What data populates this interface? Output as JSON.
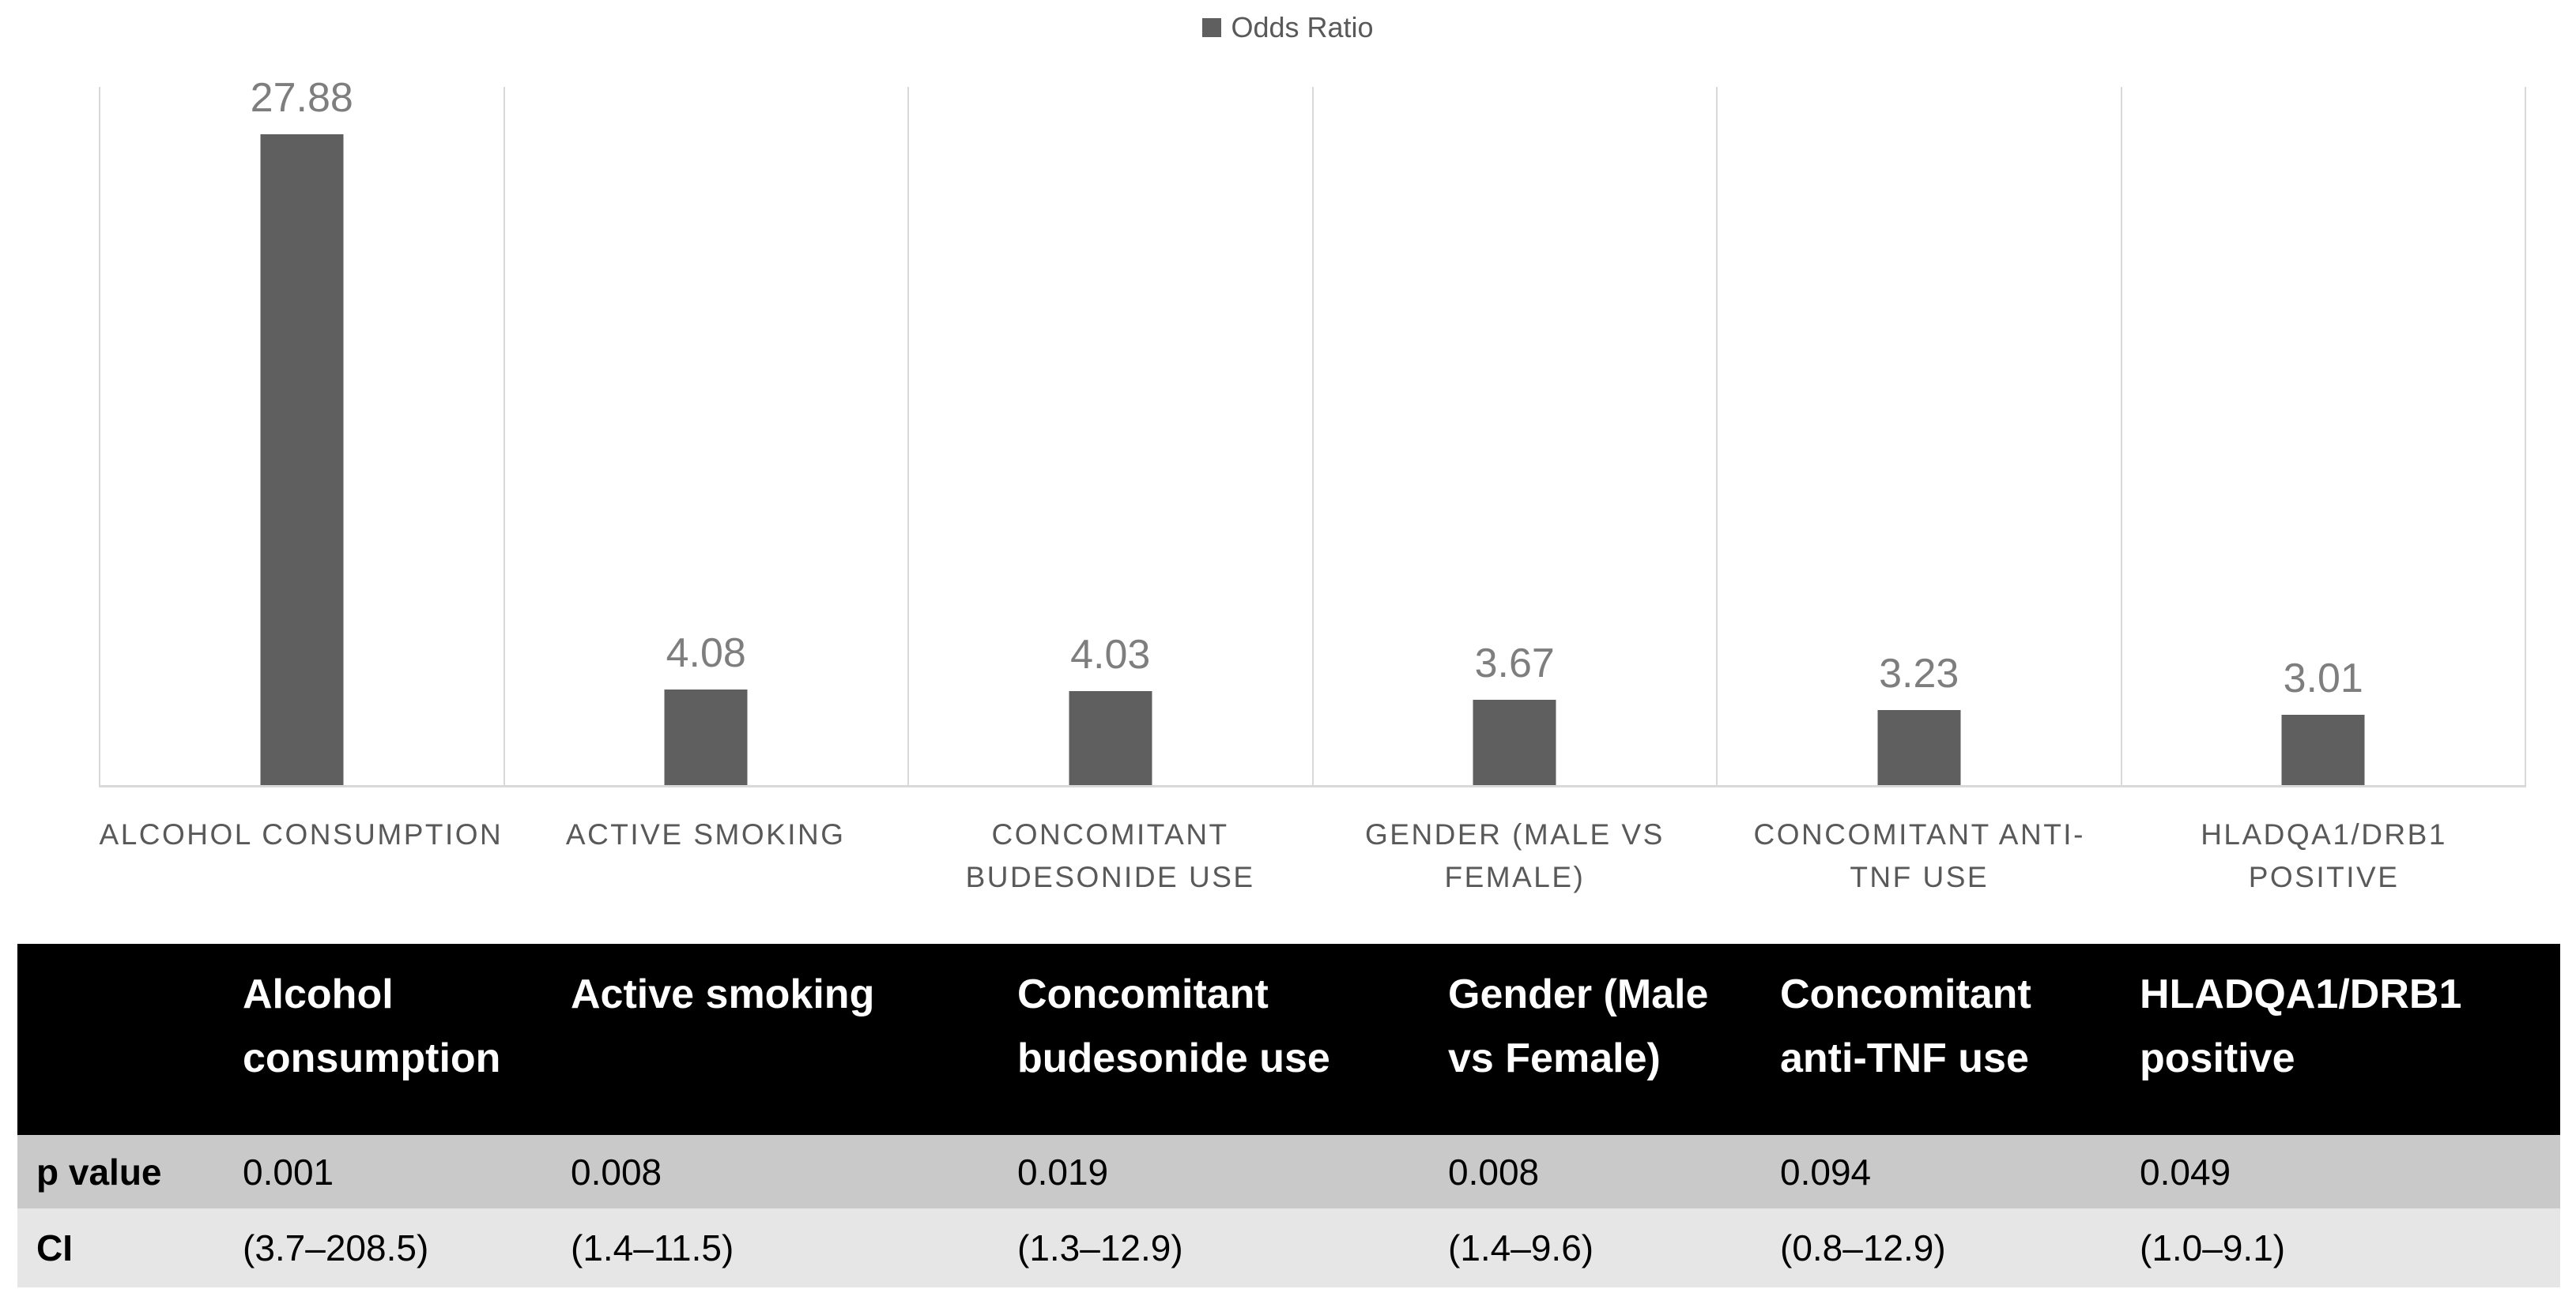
{
  "chart_data": {
    "type": "bar",
    "title": "",
    "legend": [
      {
        "name": "Odds Ratio",
        "color": "#5f5f5f"
      }
    ],
    "legend_position": "top-center",
    "grid": "vertical category separators only",
    "bar_color": "#5f5f5f",
    "value_label_color": "#7e7e7e",
    "axis_label_color": "#595959",
    "gridline_color": "#d9d9d9",
    "categories": [
      "ALCOHOL CONSUMPTION",
      "ACTIVE SMOKING",
      "CONCOMITANT\nBUDESONIDE USE",
      "GENDER (MALE VS\nFEMALE)",
      "CONCOMITANT ANTI-\nTNF USE",
      "HLADQA1/DRB1\nPOSITIVE"
    ],
    "series": [
      {
        "name": "Odds Ratio",
        "values": [
          27.88,
          4.08,
          4.03,
          3.67,
          3.23,
          3.01
        ],
        "value_labels": [
          "27.88",
          "4.08",
          "4.03",
          "3.67",
          "3.23",
          "3.01"
        ]
      }
    ],
    "ylim": [
      0,
      30
    ],
    "xlabel": "",
    "ylabel": ""
  },
  "table": {
    "column_headers": [
      "",
      "Alcohol\nconsumption",
      "Active smoking",
      "Concomitant\nbudesonide use",
      "Gender (Male\nvs Female)",
      "Concomitant\nanti-TNF use",
      "HLADQA1/DRB1\npositive"
    ],
    "rows": [
      {
        "label": "p value",
        "values": [
          "0.001",
          "0.008",
          "0.019",
          "0.008",
          "0.094",
          "0.049"
        ]
      },
      {
        "label": "CI",
        "values": [
          "(3.7–208.5)",
          "(1.4–11.5)",
          "(1.3–12.9)",
          "(1.4–9.6)",
          "(0.8–12.9)",
          "(1.0–9.1)"
        ]
      }
    ],
    "colors": {
      "header_bg": "#000000",
      "header_text": "#ffffff",
      "p_row_bg": "#c9c9c9",
      "ci_row_bg": "#e6e6e6"
    }
  }
}
